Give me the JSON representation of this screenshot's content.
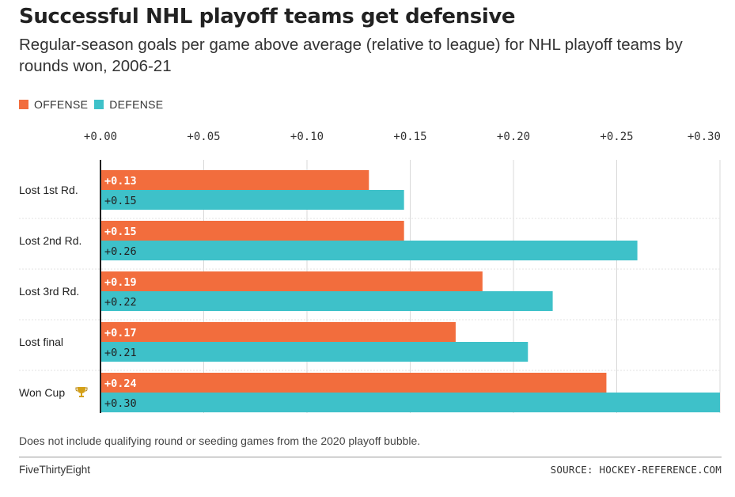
{
  "title": "Successful NHL playoff teams get defensive",
  "subtitle": "Regular-season goals per game above average (relative to league) for NHL playoff teams by rounds won, 2006-21",
  "legend": [
    {
      "label": "OFFENSE",
      "color": "#f26d3d"
    },
    {
      "label": "DEFENSE",
      "color": "#3ec1c9"
    }
  ],
  "footnote": "Does not include qualifying round or seeding games from the 2020 playoff bubble.",
  "brand": "FiveThirtyEight",
  "source": "SOURCE: HOCKEY-REFERENCE.COM",
  "colors": {
    "offense": "#f26d3d",
    "defense": "#3ec1c9",
    "grid": "#d9d9d9",
    "axis": "#222222"
  },
  "chart_data": {
    "type": "bar",
    "orientation": "horizontal",
    "categories": [
      "Lost 1st Rd.",
      "Lost 2nd Rd.",
      "Lost 3rd Rd.",
      "Lost final",
      "Won Cup"
    ],
    "category_icons": [
      "",
      "",
      "",
      "",
      "trophy-icon"
    ],
    "series": [
      {
        "name": "OFFENSE",
        "values": [
          0.13,
          0.147,
          0.185,
          0.172,
          0.245
        ],
        "labels": [
          "+0.13",
          "+0.15",
          "+0.19",
          "+0.17",
          "+0.24"
        ]
      },
      {
        "name": "DEFENSE",
        "values": [
          0.147,
          0.26,
          0.219,
          0.207,
          0.3
        ],
        "labels": [
          "+0.15",
          "+0.26",
          "+0.22",
          "+0.21",
          "+0.30"
        ]
      }
    ],
    "xlim": [
      0,
      0.3
    ],
    "xticks": [
      0,
      0.05,
      0.1,
      0.15,
      0.2,
      0.25,
      0.3
    ],
    "xtick_labels": [
      "+0.00",
      "+0.05",
      "+0.10",
      "+0.15",
      "+0.20",
      "+0.25",
      "+0.30"
    ],
    "axis_position": "top",
    "grid": true,
    "legend_position": "top-left"
  }
}
